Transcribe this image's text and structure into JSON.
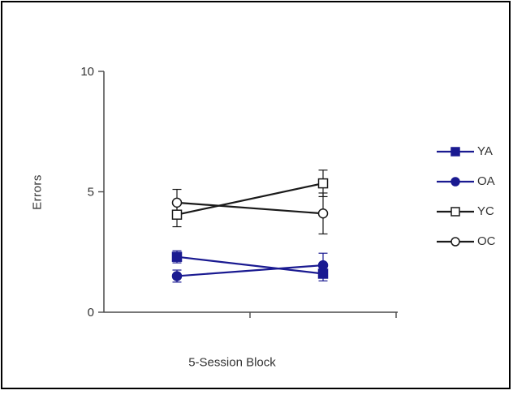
{
  "figure": {
    "background": "#ffffff",
    "frame_border_color": "#000000",
    "axis_color": "#4a4a4a",
    "text_color": "#333333"
  },
  "chart_data": {
    "type": "line",
    "title": "",
    "xlabel": "5-Session Block",
    "ylabel": "Errors",
    "ylim": [
      0,
      10
    ],
    "yticks": [
      0,
      5,
      10
    ],
    "x": [
      1,
      2
    ],
    "x_tick_labels": [],
    "grid": false,
    "legend_position": "right",
    "error_bars": true,
    "series": [
      {
        "name": "YA",
        "color": "#1a1a91",
        "marker": "filled-square",
        "values": [
          2.3,
          1.6
        ],
        "errors": [
          0.25,
          0.3
        ]
      },
      {
        "name": "OA",
        "color": "#1a1a91",
        "marker": "filled-circle",
        "values": [
          1.5,
          1.95
        ],
        "errors": [
          0.25,
          0.5
        ]
      },
      {
        "name": "YC",
        "color": "#1a1a1a",
        "marker": "open-square",
        "values": [
          4.05,
          5.35
        ],
        "errors": [
          0.5,
          0.55
        ]
      },
      {
        "name": "OC",
        "color": "#1a1a1a",
        "marker": "open-circle",
        "values": [
          4.55,
          4.1
        ],
        "errors": [
          0.55,
          0.85
        ]
      }
    ]
  }
}
